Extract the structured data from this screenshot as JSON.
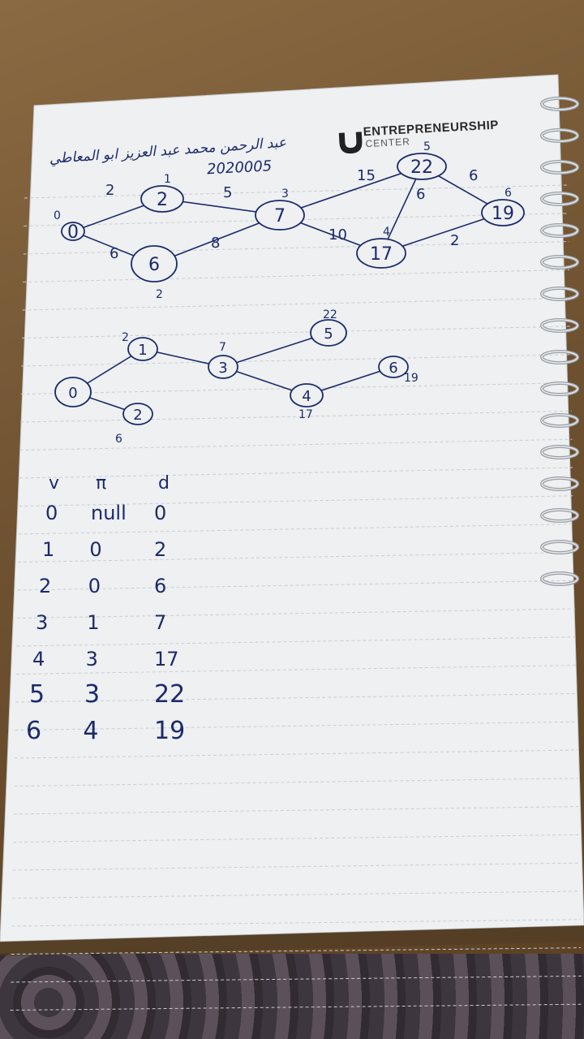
{
  "header": {
    "student_name": "عبد الرحمن محمد عبد العزيز ابو المعاطي",
    "student_id": "2020005",
    "brand_line1": "ENTREPRENEURSHIP",
    "brand_line2": "CENTER"
  },
  "graph_top": {
    "nodes": [
      {
        "label": "0",
        "dist": "0"
      },
      {
        "label": "2",
        "dist": "1"
      },
      {
        "label": "6",
        "dist": "2"
      },
      {
        "label": "7",
        "dist": "3"
      },
      {
        "label": "17",
        "dist": "4"
      },
      {
        "label": "22",
        "dist": "5"
      },
      {
        "label": "19",
        "dist": "6"
      }
    ],
    "edges": [
      {
        "weight": "2"
      },
      {
        "weight": "6"
      },
      {
        "weight": "5"
      },
      {
        "weight": "8"
      },
      {
        "weight": "15"
      },
      {
        "weight": "10"
      },
      {
        "weight": "6"
      },
      {
        "weight": "6"
      },
      {
        "weight": "2"
      }
    ]
  },
  "graph_bottom": {
    "nodes": [
      {
        "label": "0",
        "note": ""
      },
      {
        "label": "1",
        "note": "2"
      },
      {
        "label": "2",
        "note": "6"
      },
      {
        "label": "3",
        "note": "7"
      },
      {
        "label": "4",
        "note": "17"
      },
      {
        "label": "5",
        "note": "22"
      },
      {
        "label": "6",
        "note": "19"
      }
    ]
  },
  "table": {
    "headers": [
      "v",
      "π",
      "d"
    ],
    "rows": [
      [
        "0",
        "null",
        "0"
      ],
      [
        "1",
        "0",
        "2"
      ],
      [
        "2",
        "0",
        "6"
      ],
      [
        "3",
        "1",
        "7"
      ],
      [
        "4",
        "3",
        "17"
      ],
      [
        "5",
        "3",
        "22"
      ],
      [
        "6",
        "4",
        "19"
      ]
    ]
  },
  "colors": {
    "ink": "#1c2a6b",
    "paper": "#eef0f1",
    "rule": "#c9ced3",
    "wood": "#7a5a35"
  }
}
